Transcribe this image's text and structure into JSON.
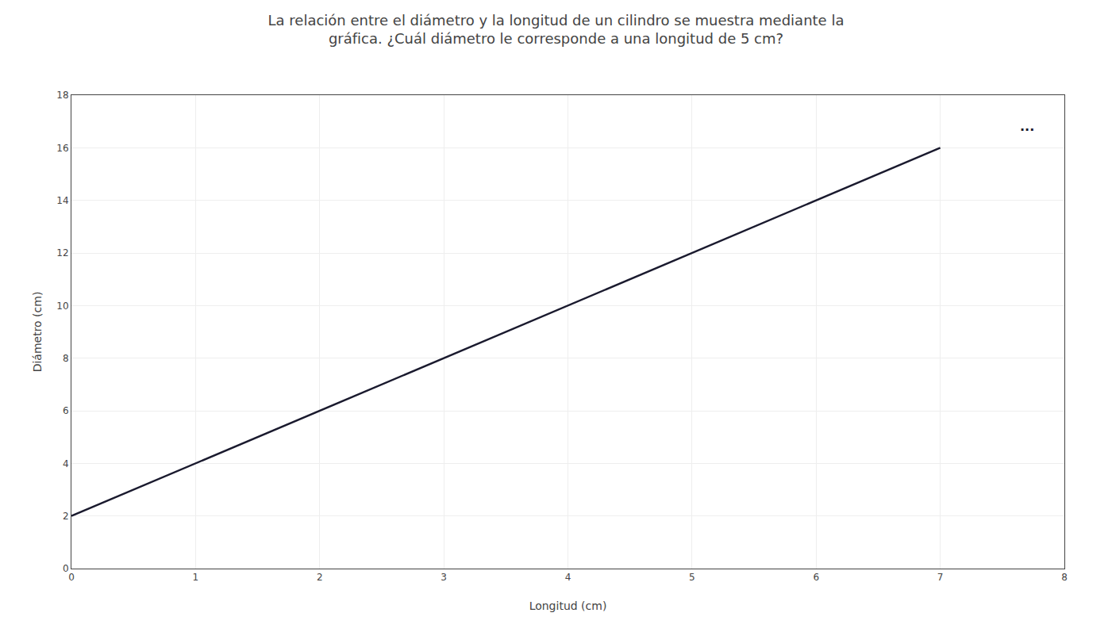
{
  "chart_data": {
    "type": "line",
    "title": "La relación entre el diámetro y la longitud de un cilindro se muestra mediante la",
    "subtitle": "gráfica. ¿Cuál diámetro le corresponde a una longitud de 5 cm?",
    "xlabel": "Longitud (cm)",
    "ylabel": "Diámetro (cm)",
    "x": [
      0,
      7
    ],
    "values": [
      2,
      16
    ],
    "color": "#1a1a2e",
    "xlim": [
      0,
      8
    ],
    "ylim": [
      0,
      18
    ],
    "xticks": [
      0,
      1,
      2,
      3,
      4,
      5,
      6,
      7,
      8
    ],
    "yticks": [
      0,
      2,
      4,
      6,
      8,
      10,
      12,
      14,
      16,
      18
    ],
    "grid": true,
    "annotations": [
      {
        "text": "...",
        "x": 7.7,
        "y": 16.8
      }
    ]
  }
}
